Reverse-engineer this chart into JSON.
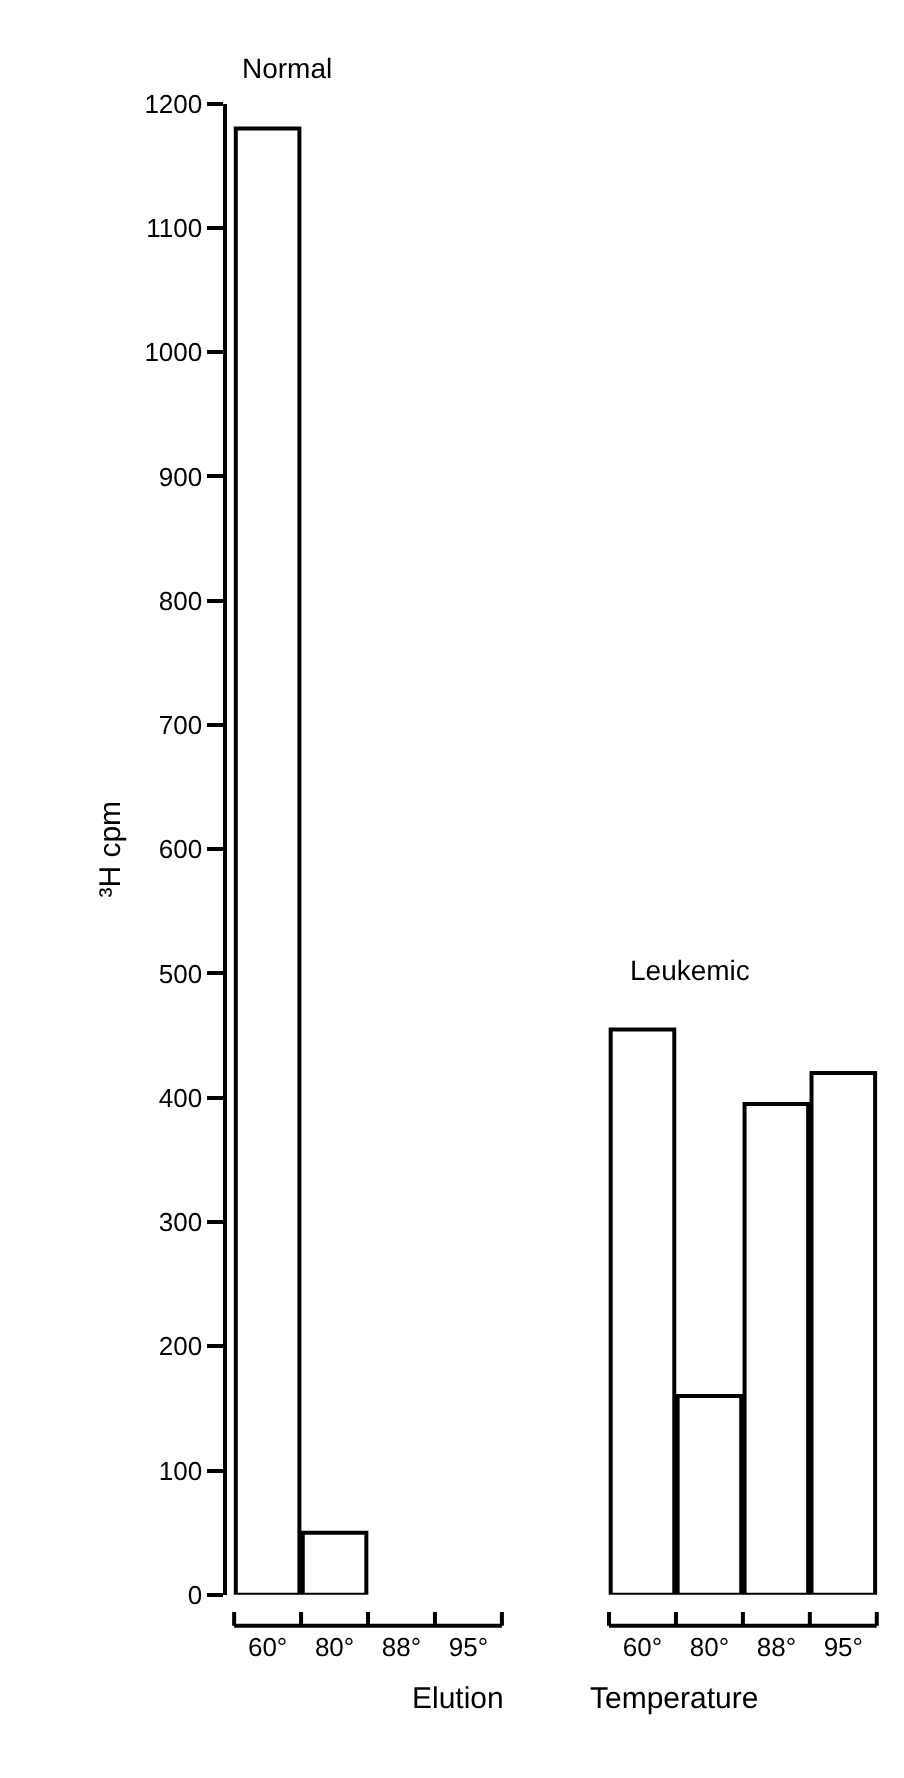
{
  "chart_data": [
    {
      "type": "bar",
      "title": "Normal",
      "xlabel": "Elution",
      "ylabel": "³H cpm",
      "categories": [
        "60°",
        "80°",
        "88°",
        "95°"
      ],
      "values": [
        1180,
        50,
        0,
        0
      ],
      "color": "#ffffff",
      "ylim": [
        0,
        1200
      ],
      "yticks": [
        0,
        100,
        200,
        300,
        400,
        500,
        600,
        700,
        800,
        900,
        1000,
        1100,
        1200
      ]
    },
    {
      "type": "bar",
      "title": "Leukemic",
      "xlabel": "Temperature",
      "categories": [
        "60°",
        "80°",
        "88°",
        "95°"
      ],
      "values": [
        455,
        160,
        395,
        420
      ],
      "color": "#ffffff",
      "ylim": [
        0,
        1200
      ],
      "tick_labels": "x"
    }
  ]
}
